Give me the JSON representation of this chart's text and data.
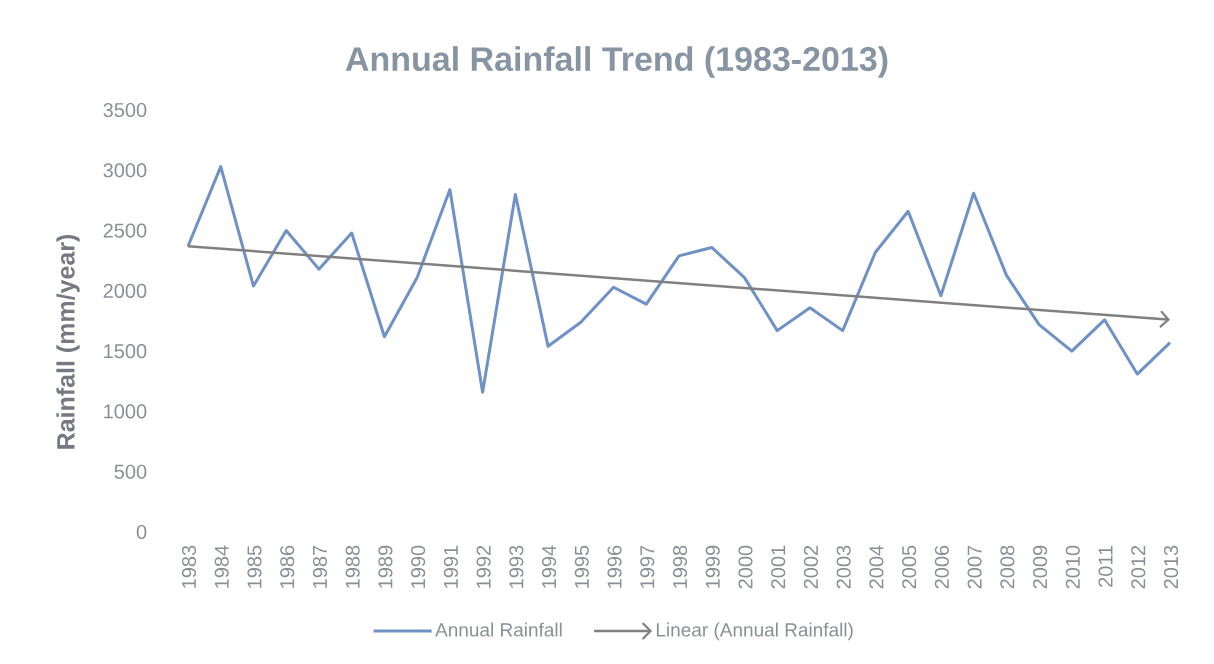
{
  "chart_data": {
    "type": "line",
    "title": "Annual Rainfall Trend (1983-2013)",
    "ylabel": "Rainfall (mm/year)",
    "x": [
      1983,
      1984,
      1985,
      1986,
      1987,
      1988,
      1989,
      1990,
      1991,
      1992,
      1993,
      1994,
      1995,
      1996,
      1997,
      1998,
      1999,
      2000,
      2001,
      2002,
      2003,
      2004,
      2005,
      2006,
      2007,
      2008,
      2009,
      2010,
      2011,
      2012,
      2013
    ],
    "series": [
      {
        "name": "Annual Rainfall",
        "color": "#6f91c6",
        "values": [
          2370,
          3030,
          2040,
          2500,
          2180,
          2480,
          1620,
          2110,
          2840,
          1160,
          2800,
          1540,
          1740,
          2030,
          1890,
          2290,
          2360,
          2110,
          1670,
          1860,
          1670,
          2320,
          2660,
          1960,
          2810,
          2130,
          1720,
          1500,
          1760,
          1310,
          1570
        ]
      },
      {
        "name": "Linear (Annual Rainfall)",
        "type": "line",
        "color": "#808080",
        "x": [
          1983,
          2013
        ],
        "values": [
          2370,
          1760
        ]
      }
    ],
    "xlim": [
      1983,
      2013
    ],
    "xticks": [
      1983,
      1984,
      1985,
      1986,
      1987,
      1988,
      1989,
      1990,
      1991,
      1992,
      1993,
      1994,
      1995,
      1996,
      1997,
      1998,
      1999,
      2000,
      2001,
      2002,
      2003,
      2004,
      2005,
      2006,
      2007,
      2008,
      2009,
      2010,
      2011,
      2012,
      2013
    ],
    "ylim": [
      0,
      3500
    ],
    "yticks": [
      0,
      500,
      1000,
      1500,
      2000,
      2500,
      3000,
      3500
    ],
    "legend": "bottom"
  }
}
